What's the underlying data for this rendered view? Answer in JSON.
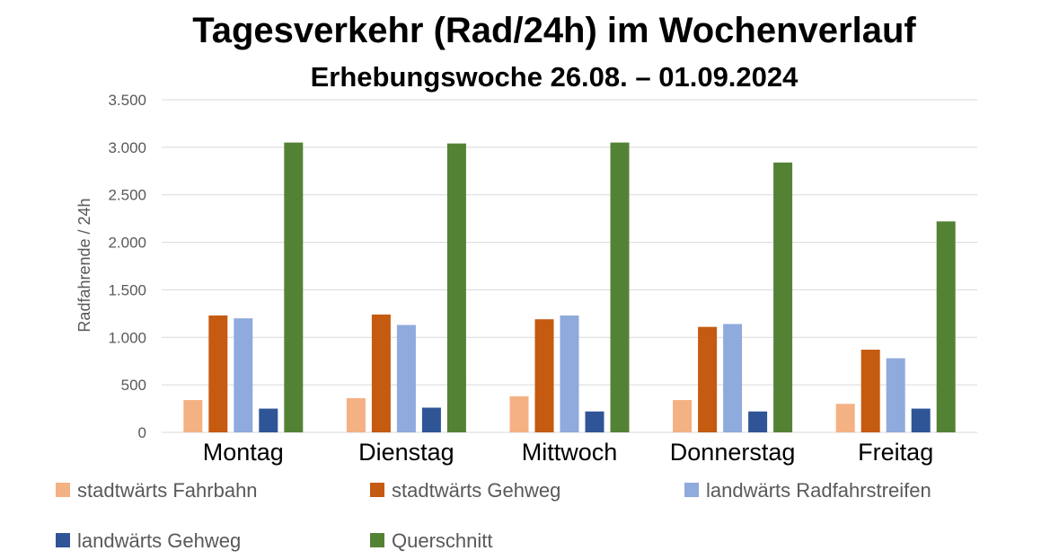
{
  "chart_data": {
    "type": "bar",
    "title": "Tagesverkehr (Rad/24h) im Wochenverlauf",
    "subtitle": "Erhebungswoche 26.08. – 01.09.2024",
    "xlabel": "",
    "ylabel": "Radfahrende / 24h",
    "ylim": [
      0,
      3500
    ],
    "yticks": [
      0,
      500,
      1000,
      1500,
      2000,
      2500,
      3000,
      3500
    ],
    "ytick_labels": [
      "0",
      "500",
      "1.000",
      "1.500",
      "2.000",
      "2.500",
      "3.000",
      "3.500"
    ],
    "grid": true,
    "legend_position": "bottom",
    "categories": [
      "Montag",
      "Dienstag",
      "Mittwoch",
      "Donnerstag",
      "Freitag"
    ],
    "series": [
      {
        "name": "stadtwärts Fahrbahn",
        "color": "#F4B183",
        "values": [
          340,
          360,
          380,
          340,
          300
        ]
      },
      {
        "name": "stadtwärts Gehweg",
        "color": "#C55A11",
        "values": [
          1230,
          1240,
          1190,
          1110,
          870
        ]
      },
      {
        "name": "landwärts Radfahrstreifen",
        "color": "#8FAADC",
        "values": [
          1200,
          1130,
          1230,
          1140,
          780
        ]
      },
      {
        "name": "landwärts Gehweg",
        "color": "#2F5597",
        "values": [
          250,
          260,
          220,
          220,
          250
        ]
      },
      {
        "name": "Querschnitt",
        "color": "#548235",
        "values": [
          3050,
          3040,
          3050,
          2840,
          2220
        ]
      }
    ]
  }
}
